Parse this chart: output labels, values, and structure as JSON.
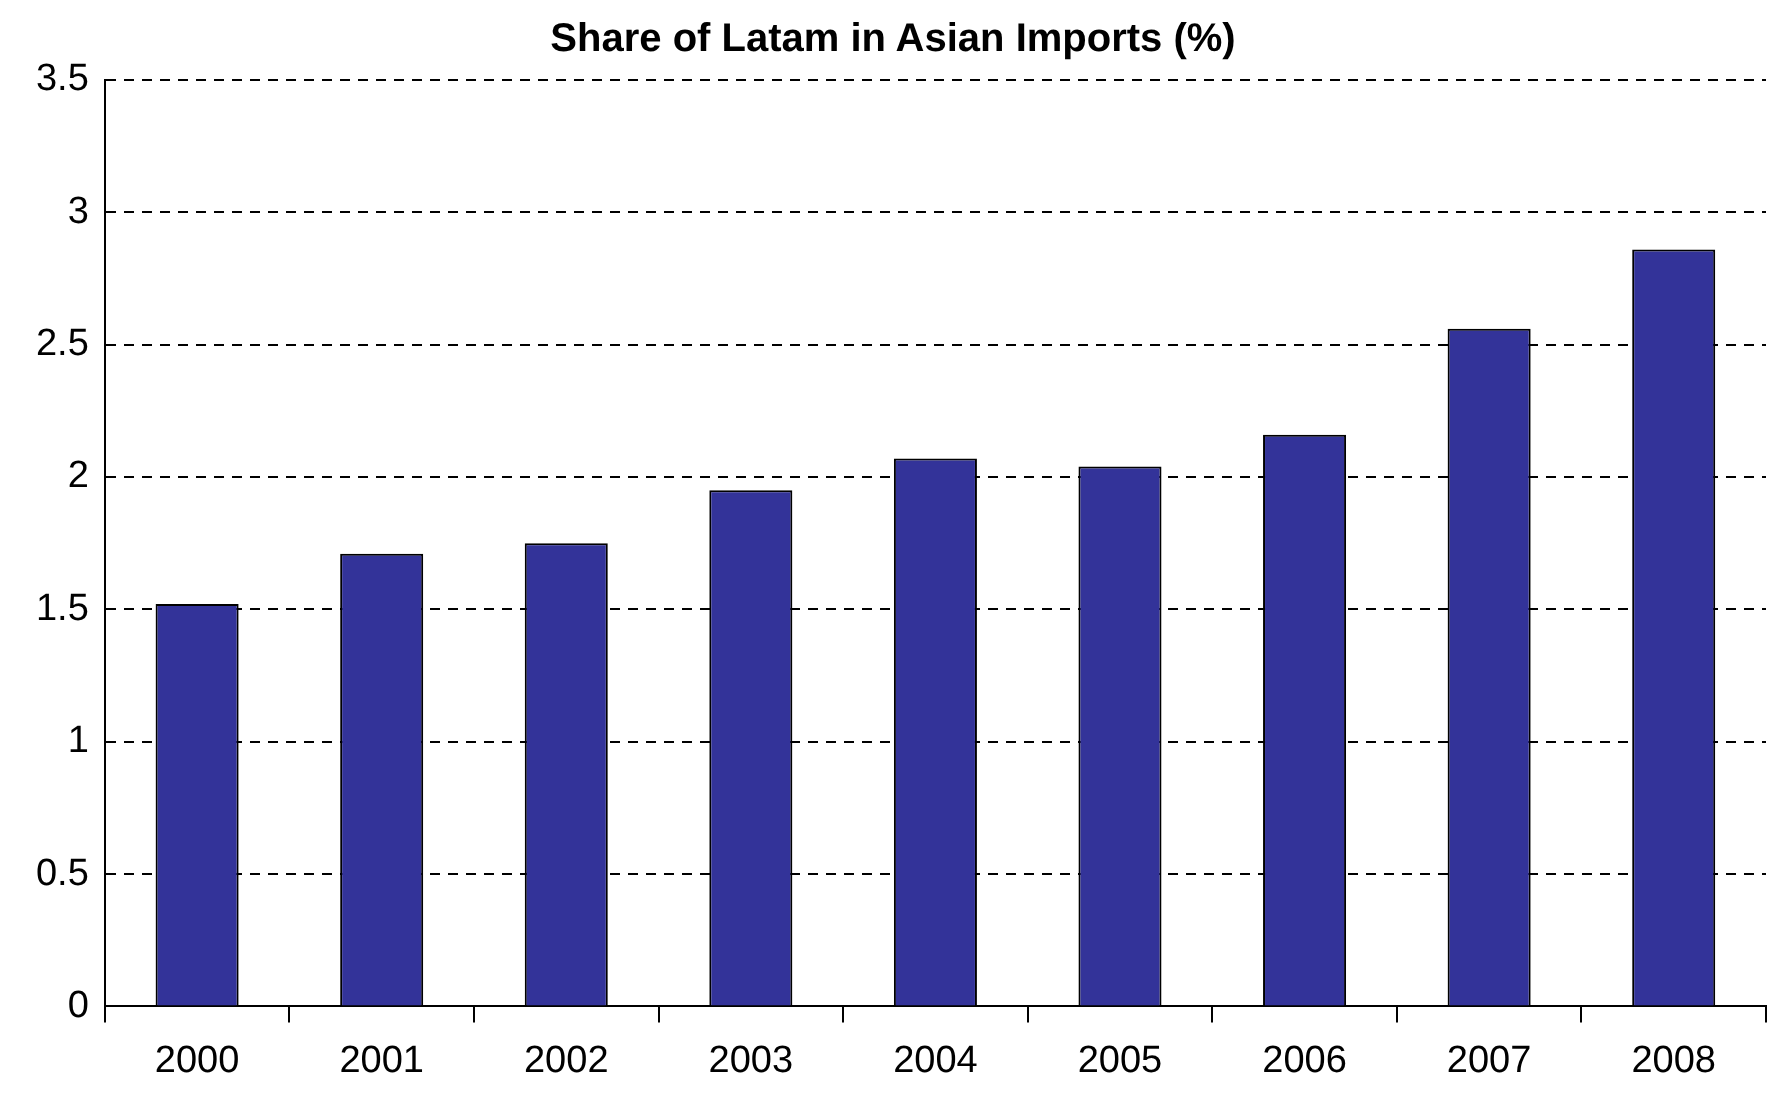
{
  "chart_data": {
    "type": "bar",
    "title": "Share of Latam in Asian Imports (%)",
    "categories": [
      "2000",
      "2001",
      "2002",
      "2003",
      "2004",
      "2005",
      "2006",
      "2007",
      "2008"
    ],
    "values": [
      1.52,
      1.71,
      1.75,
      1.95,
      2.07,
      2.04,
      2.16,
      2.56,
      2.86
    ],
    "color": "#333399",
    "ylim": [
      0,
      3.5
    ],
    "yticks": [
      0,
      0.5,
      1,
      1.5,
      2,
      2.5,
      3,
      3.5
    ],
    "grid": "y",
    "legend": false
  }
}
